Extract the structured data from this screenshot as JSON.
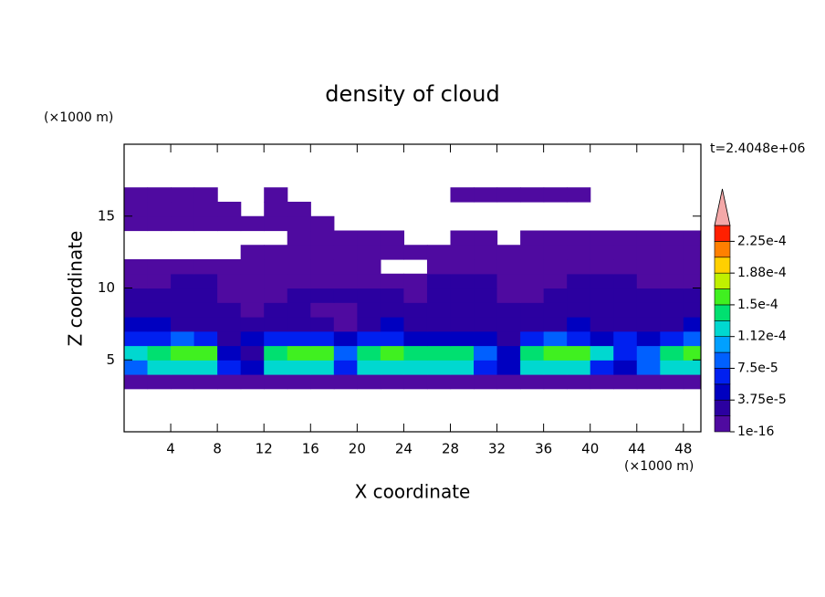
{
  "chart_data": {
    "type": "contour",
    "title": "density of cloud",
    "xlabel": "X coordinate",
    "ylabel": "Z coordinate",
    "x_unit": "(×1000 m)",
    "y_unit": "(×1000 m)",
    "time_label": "t=2.4048e+06",
    "xlim": [
      0,
      49.5
    ],
    "ylim": [
      0,
      20
    ],
    "xticks": [
      4,
      8,
      12,
      16,
      20,
      24,
      28,
      32,
      36,
      40,
      44,
      48
    ],
    "yticks": [
      5,
      10,
      15
    ],
    "x": [
      1,
      3,
      5,
      7,
      9,
      11,
      13,
      15,
      17,
      19,
      21,
      23,
      25,
      27,
      29,
      31,
      33,
      35,
      37,
      39,
      41,
      43,
      45,
      47,
      49
    ],
    "y": [
      3.5,
      4.5,
      5.5,
      6.5,
      7.5,
      8.5,
      9.5,
      10.5,
      11.5,
      12.5,
      13.5,
      14.5,
      15.5,
      16.5
    ],
    "z": [
      [
        1e-05,
        1e-05,
        1e-05,
        1e-05,
        1e-05,
        1e-05,
        1e-05,
        1e-05,
        1e-05,
        1e-05,
        1e-05,
        1e-05,
        1e-05,
        1e-05,
        1e-05,
        1e-05,
        1e-05,
        1e-05,
        1e-05,
        1e-05,
        1e-05,
        1e-05,
        1e-05,
        1e-05,
        1e-05
      ],
      [
        8e-05,
        0.00012,
        0.00012,
        0.00012,
        6e-05,
        4.5e-05,
        0.00012,
        0.00012,
        0.00012,
        6e-05,
        0.00012,
        0.00012,
        0.00012,
        0.00012,
        0.00012,
        6e-05,
        4.5e-05,
        0.00012,
        0.00012,
        0.00012,
        6e-05,
        4.5e-05,
        8e-05,
        0.00012,
        0.00012
      ],
      [
        0.00012,
        0.00014,
        0.00016,
        0.00016,
        4.5e-05,
        2.5e-05,
        0.00014,
        0.00016,
        0.00016,
        8e-05,
        0.00014,
        0.00016,
        0.00014,
        0.00014,
        0.00014,
        8e-05,
        4.5e-05,
        0.00014,
        0.00016,
        0.00016,
        0.00012,
        6e-05,
        8e-05,
        0.00014,
        0.00016
      ],
      [
        6e-05,
        6e-05,
        8e-05,
        6e-05,
        2.5e-05,
        4.5e-05,
        6e-05,
        6e-05,
        6e-05,
        4.5e-05,
        6e-05,
        6e-05,
        4.5e-05,
        4.5e-05,
        4.5e-05,
        4.5e-05,
        2.5e-05,
        6e-05,
        8e-05,
        6e-05,
        4.5e-05,
        6e-05,
        4.5e-05,
        6e-05,
        8e-05
      ],
      [
        4.5e-05,
        4.5e-05,
        2.5e-05,
        2.5e-05,
        2.5e-05,
        2.5e-05,
        2.5e-05,
        2.5e-05,
        2.5e-05,
        1e-05,
        2.5e-05,
        4.5e-05,
        2.5e-05,
        2.5e-05,
        2.5e-05,
        2.5e-05,
        2.5e-05,
        2.5e-05,
        2.5e-05,
        4.5e-05,
        2.5e-05,
        2.5e-05,
        2.5e-05,
        2.5e-05,
        4.5e-05
      ],
      [
        2.5e-05,
        2.5e-05,
        2.5e-05,
        2.5e-05,
        2.5e-05,
        1e-05,
        2.5e-05,
        2.5e-05,
        1e-05,
        1e-05,
        2.5e-05,
        2.5e-05,
        2.5e-05,
        2.5e-05,
        2.5e-05,
        2.5e-05,
        2.5e-05,
        2.5e-05,
        2.5e-05,
        2.5e-05,
        2.5e-05,
        2.5e-05,
        2.5e-05,
        2.5e-05,
        2.5e-05
      ],
      [
        2.5e-05,
        2.5e-05,
        2.5e-05,
        2.5e-05,
        1e-05,
        1e-05,
        1e-05,
        2.5e-05,
        2.5e-05,
        2.5e-05,
        2.5e-05,
        2.5e-05,
        1e-05,
        2.5e-05,
        2.5e-05,
        2.5e-05,
        1e-05,
        1e-05,
        2.5e-05,
        2.5e-05,
        2.5e-05,
        2.5e-05,
        2.5e-05,
        2.5e-05,
        2.5e-05
      ],
      [
        1e-05,
        1e-05,
        2.5e-05,
        2.5e-05,
        1e-05,
        1e-05,
        1e-05,
        1e-05,
        1e-05,
        1e-05,
        1e-05,
        1e-05,
        1e-05,
        2.5e-05,
        2.5e-05,
        2.5e-05,
        1e-05,
        1e-05,
        1e-05,
        2.5e-05,
        2.5e-05,
        2.5e-05,
        1e-05,
        1e-05,
        1e-05
      ],
      [
        1e-05,
        1e-05,
        1e-05,
        1e-05,
        1e-05,
        1e-05,
        1e-05,
        1e-05,
        1e-05,
        1e-05,
        1e-05,
        null,
        null,
        1e-05,
        1e-05,
        1e-05,
        1e-05,
        1e-05,
        1e-05,
        1e-05,
        1e-05,
        1e-05,
        1e-05,
        1e-05,
        1e-05
      ],
      [
        null,
        null,
        null,
        null,
        null,
        1e-05,
        1e-05,
        1e-05,
        1e-05,
        1e-05,
        1e-05,
        1e-05,
        1e-05,
        1e-05,
        1e-05,
        1e-05,
        1e-05,
        1e-05,
        1e-05,
        1e-05,
        1e-05,
        1e-05,
        1e-05,
        1e-05,
        1e-05
      ],
      [
        null,
        null,
        null,
        null,
        null,
        null,
        null,
        1e-05,
        1e-05,
        1e-05,
        1e-05,
        1e-05,
        null,
        null,
        1e-05,
        1e-05,
        null,
        1e-05,
        1e-05,
        1e-05,
        1e-05,
        1e-05,
        1e-05,
        1e-05,
        1e-05
      ],
      [
        1e-05,
        1e-05,
        1e-05,
        1e-05,
        1e-05,
        1e-05,
        1e-05,
        1e-05,
        1e-05,
        null,
        null,
        null,
        null,
        null,
        null,
        null,
        null,
        null,
        null,
        null,
        null,
        null,
        null,
        null,
        null
      ],
      [
        1e-05,
        1e-05,
        1e-05,
        1e-05,
        1e-05,
        null,
        1e-05,
        1e-05,
        null,
        null,
        null,
        null,
        null,
        null,
        null,
        null,
        null,
        null,
        null,
        null,
        null,
        null,
        null,
        null,
        null
      ],
      [
        1e-05,
        1e-05,
        1e-05,
        1e-05,
        null,
        null,
        1e-05,
        null,
        null,
        null,
        null,
        null,
        null,
        null,
        1e-05,
        1e-05,
        1e-05,
        1e-05,
        1e-05,
        1e-05,
        null,
        null,
        null,
        null,
        null
      ]
    ],
    "colorbar": {
      "levels": [
        1e-16,
        1.875e-05,
        3.75e-05,
        5.625e-05,
        7.5e-05,
        9.375e-05,
        0.0001125,
        0.00013125,
        0.00015,
        0.00016875,
        0.0001875,
        0.00020625,
        0.000225,
        0.00024375
      ],
      "colors": [
        "#4f0aa0",
        "#2b00a0",
        "#0000c0",
        "#0020f0",
        "#0060ff",
        "#00a0ff",
        "#00d8d0",
        "#00e070",
        "#40f020",
        "#c0f000",
        "#ffd000",
        "#ff8000",
        "#ff2000"
      ],
      "over_color": "#f4a8a8",
      "ticks": [
        {
          "value": 1e-16,
          "label": "1e-16"
        },
        {
          "value": 3.75e-05,
          "label": "3.75e-5"
        },
        {
          "value": 7.5e-05,
          "label": "7.5e-5"
        },
        {
          "value": 0.0001125,
          "label": "1.12e-4"
        },
        {
          "value": 0.00015,
          "label": "1.5e-4"
        },
        {
          "value": 0.0001875,
          "label": "1.88e-4"
        },
        {
          "value": 0.000225,
          "label": "2.25e-4"
        }
      ]
    }
  }
}
